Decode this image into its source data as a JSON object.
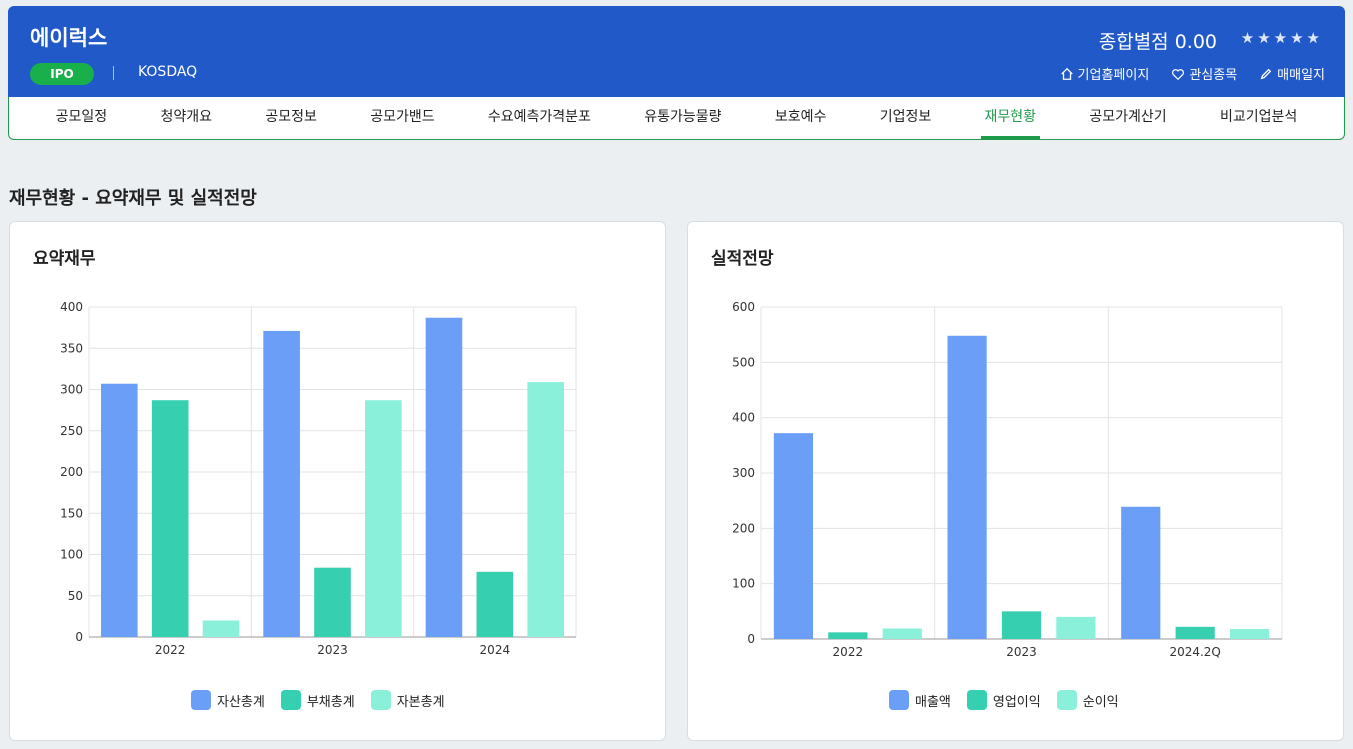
{
  "header": {
    "company": "에이럭스",
    "badge": "IPO",
    "market": "KOSDAQ",
    "score_label": "종합별점 0.00",
    "stars": "★★★★★",
    "actions": [
      "기업홈페이지",
      "관심종목",
      "매매일지"
    ]
  },
  "tabs": [
    {
      "label": "공모일정"
    },
    {
      "label": "청약개요"
    },
    {
      "label": "공모정보"
    },
    {
      "label": "공모가밴드"
    },
    {
      "label": "수요예측가격분포"
    },
    {
      "label": "유통가능물량"
    },
    {
      "label": "보호예수"
    },
    {
      "label": "기업정보"
    },
    {
      "label": "재무현황",
      "active": true
    },
    {
      "label": "공모가계산기"
    },
    {
      "label": "비교기업분석"
    }
  ],
  "section_title": "재무현황 - 요약재무 및 실적전망",
  "cards": {
    "left_title": "요약재무",
    "right_title": "실적전망"
  },
  "colors": {
    "accent": "#2159c9",
    "active_green": "#1e9a4a",
    "series1": "#6b9ef7",
    "series2": "#36cfb0",
    "series3": "#8af0da"
  },
  "chart_data": [
    {
      "type": "bar",
      "title": "요약재무",
      "categories": [
        "2022",
        "2023",
        "2024"
      ],
      "series": [
        {
          "name": "자산총계",
          "values": [
            307,
            371,
            387
          ]
        },
        {
          "name": "부채총계",
          "values": [
            287,
            84,
            79
          ]
        },
        {
          "name": "자본총계",
          "values": [
            20,
            287,
            309
          ]
        }
      ],
      "ylim": [
        0,
        400
      ],
      "yticks": [
        0,
        50,
        100,
        150,
        200,
        250,
        300,
        350,
        400
      ],
      "grid": true,
      "legend": "bottom"
    },
    {
      "type": "bar",
      "title": "실적전망",
      "categories": [
        "2022",
        "2023",
        "2024.2Q"
      ],
      "series": [
        {
          "name": "매출액",
          "values": [
            372,
            548,
            239
          ]
        },
        {
          "name": "영업이익",
          "values": [
            12,
            50,
            22
          ]
        },
        {
          "name": "순이익",
          "values": [
            19,
            40,
            18
          ]
        }
      ],
      "ylim": [
        0,
        600
      ],
      "yticks": [
        0,
        100,
        200,
        300,
        400,
        500,
        600
      ],
      "grid": true,
      "legend": "bottom"
    }
  ]
}
